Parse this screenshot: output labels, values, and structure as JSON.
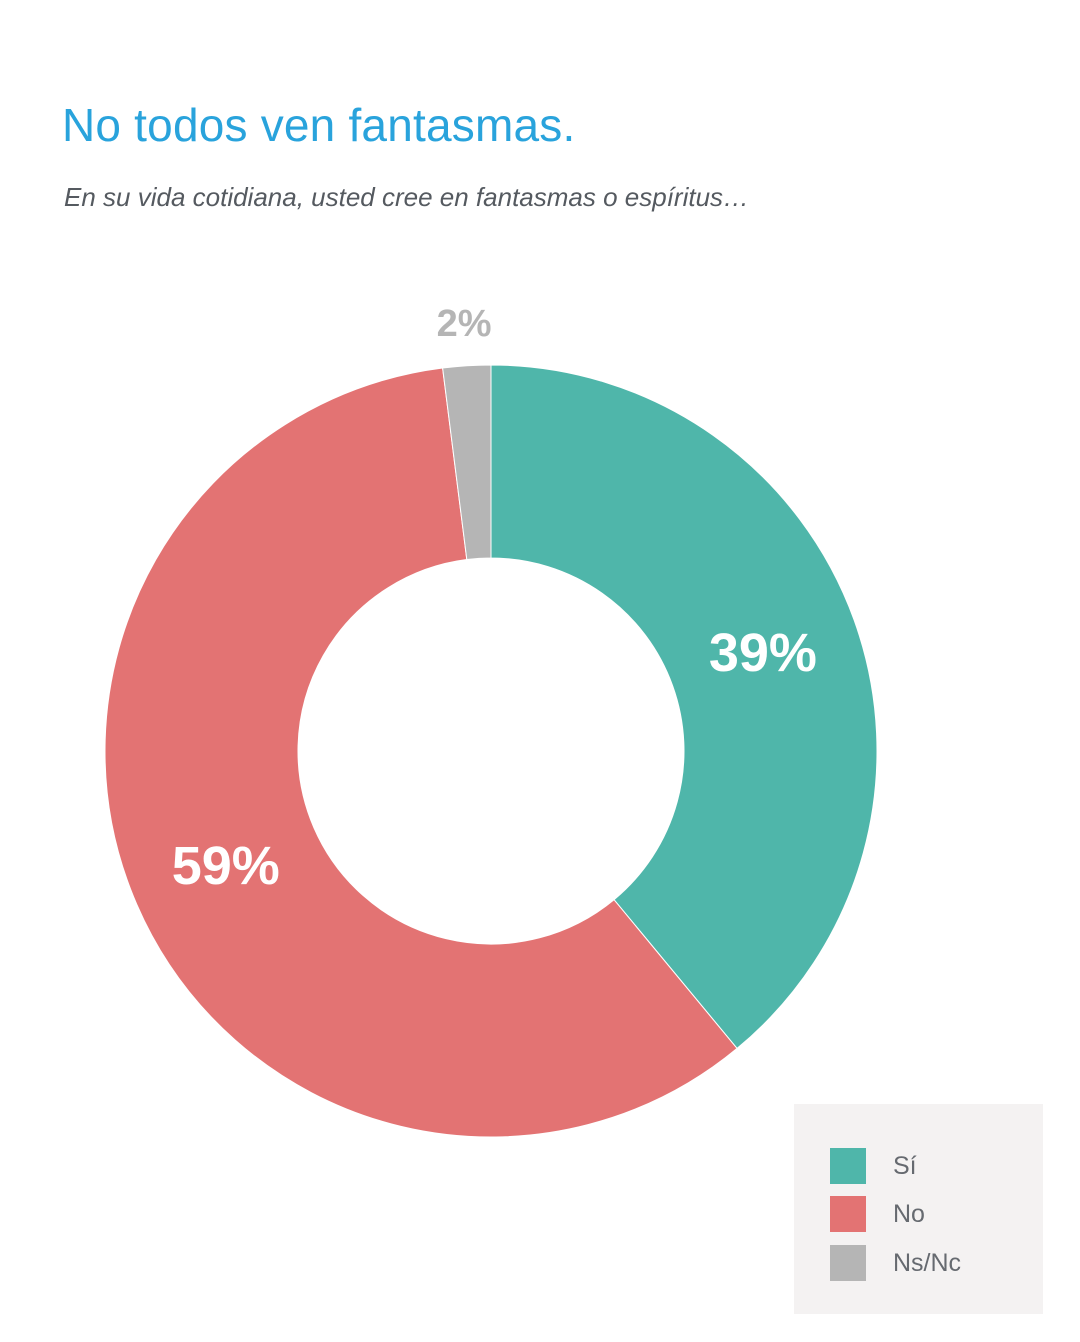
{
  "header": {
    "title": "No todos ven fantasmas.",
    "subtitle": "En su vida cotidiana, usted cree en fantasmas o espíritus…"
  },
  "chart_data": {
    "type": "pie",
    "donut": true,
    "categories": [
      "Sí",
      "No",
      "Ns/Nc"
    ],
    "values": [
      39,
      59,
      2
    ],
    "data_labels": [
      "39%",
      "59%",
      "2%"
    ],
    "colors": [
      "#4fb6aa",
      "#e37373",
      "#b5b5b5"
    ],
    "label_colors": [
      "#ffffff",
      "#ffffff",
      "#b5b5b5"
    ],
    "legend_position": "bottom-right",
    "start_angle_deg": 0,
    "direction": "clockwise"
  }
}
